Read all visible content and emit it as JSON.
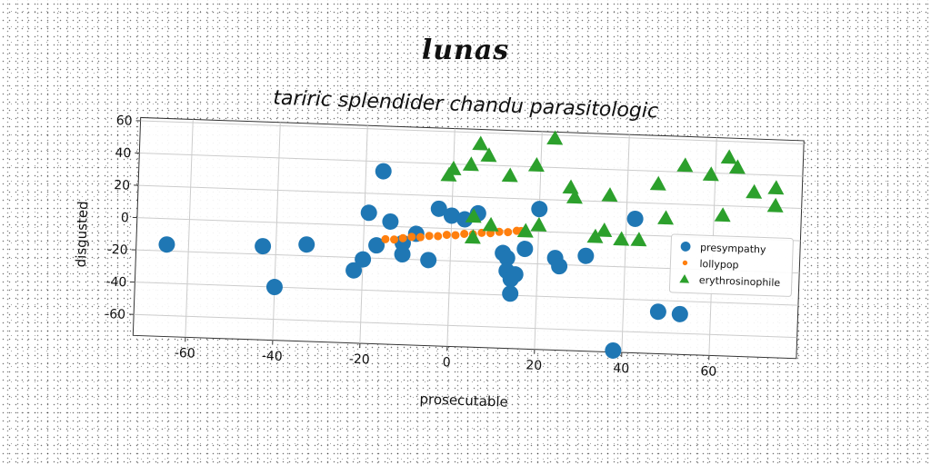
{
  "page": {
    "title": "lunas"
  },
  "chart_data": {
    "type": "scatter",
    "title": "tariric splendider chandu parasitologic",
    "xlabel": "prosecutable",
    "ylabel": "disgusted",
    "xlim": [
      -72,
      80
    ],
    "ylim": [
      -73,
      62
    ],
    "xticks": [
      -60,
      -40,
      -20,
      0,
      20,
      40,
      60
    ],
    "yticks": [
      -60,
      -40,
      -20,
      0,
      20,
      40,
      60
    ],
    "grid": true,
    "legend_position": "center-right",
    "series": [
      {
        "name": "presympathy",
        "marker": "circle",
        "color": "#1f77b4",
        "points": [
          [
            -65,
            -16
          ],
          [
            -43,
            -15
          ],
          [
            -40,
            -40
          ],
          [
            -33,
            -13
          ],
          [
            -22,
            -28
          ],
          [
            -20,
            -21
          ],
          [
            -19,
            8
          ],
          [
            -17,
            -12
          ],
          [
            -16,
            34
          ],
          [
            -14,
            3
          ],
          [
            -11,
            -17
          ],
          [
            -11,
            -10
          ],
          [
            -8,
            -4
          ],
          [
            -5,
            -20
          ],
          [
            -3,
            12
          ],
          [
            0,
            8
          ],
          [
            3,
            6
          ],
          [
            6,
            10
          ],
          [
            12,
            -14
          ],
          [
            13,
            -17
          ],
          [
            13,
            -25
          ],
          [
            14,
            -30
          ],
          [
            14,
            -39
          ],
          [
            15,
            -27
          ],
          [
            17,
            -11
          ],
          [
            20,
            14
          ],
          [
            24,
            -16
          ],
          [
            25,
            -21
          ],
          [
            31,
            -14
          ],
          [
            38,
            -72
          ],
          [
            42,
            10
          ],
          [
            48,
            -47
          ],
          [
            53,
            -48
          ]
        ]
      },
      {
        "name": "lollypop",
        "marker": "circle-small",
        "color": "#ff7f0e",
        "points": [
          [
            -15,
            -8
          ],
          [
            -13,
            -8
          ],
          [
            -11,
            -7
          ],
          [
            -9,
            -6
          ],
          [
            -7,
            -6
          ],
          [
            -5,
            -5
          ],
          [
            -3,
            -5
          ],
          [
            -1,
            -4
          ],
          [
            1,
            -4
          ],
          [
            3,
            -3
          ],
          [
            5,
            -3
          ],
          [
            7,
            -2
          ],
          [
            9,
            -2
          ],
          [
            11,
            -1
          ],
          [
            13,
            -1
          ],
          [
            15,
            0
          ],
          [
            16,
            0
          ]
        ]
      },
      {
        "name": "erythrosinophile",
        "marker": "triangle",
        "color": "#2ca02c",
        "points": [
          [
            -1,
            33
          ],
          [
            0,
            37
          ],
          [
            4,
            40
          ],
          [
            5,
            8
          ],
          [
            5,
            -5
          ],
          [
            6,
            53
          ],
          [
            8,
            46
          ],
          [
            9,
            3
          ],
          [
            13,
            34
          ],
          [
            17,
            0
          ],
          [
            19,
            41
          ],
          [
            20,
            4
          ],
          [
            23,
            58
          ],
          [
            27,
            28
          ],
          [
            28,
            22
          ],
          [
            33,
            -2
          ],
          [
            35,
            2
          ],
          [
            36,
            24
          ],
          [
            39,
            -3
          ],
          [
            43,
            -3
          ],
          [
            47,
            32
          ],
          [
            49,
            11
          ],
          [
            53,
            44
          ],
          [
            59,
            39
          ],
          [
            62,
            14
          ],
          [
            63,
            50
          ],
          [
            65,
            44
          ],
          [
            69,
            29
          ],
          [
            74,
            32
          ],
          [
            74,
            21
          ]
        ]
      }
    ]
  }
}
